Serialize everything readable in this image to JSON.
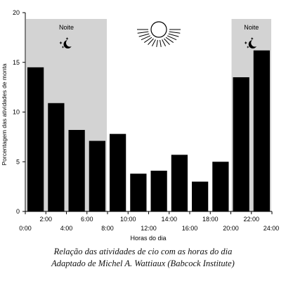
{
  "chart_data": {
    "type": "bar",
    "title": "",
    "ylabel": "Porcentagem das atividades de monta",
    "xlabel": "Horas do dia",
    "ylim": [
      0,
      20
    ],
    "xlim": [
      0,
      24
    ],
    "yticks": [
      0,
      5,
      10,
      15,
      20
    ],
    "xticks_bottom": [
      "0:00",
      "4:00",
      "8:00",
      "12:00",
      "16:00",
      "20:00",
      "24:00"
    ],
    "xticks_top": [
      "2:00",
      "6:00",
      "10:00",
      "14:00",
      "18:00",
      "22:00"
    ],
    "bin_width_hours": 2,
    "x": [
      0,
      2,
      4,
      6,
      8,
      10,
      12,
      14,
      16,
      18,
      20,
      22
    ],
    "values": [
      14.5,
      10.9,
      8.2,
      7.1,
      7.8,
      3.8,
      4.1,
      5.7,
      3.0,
      5.0,
      13.5,
      16.2
    ],
    "bar_color": "#000000",
    "night_shading_color": "#d3d3d3",
    "night_periods": [
      {
        "label": "Noite",
        "from": 0,
        "to": 8
      },
      {
        "label": "Noite",
        "from": 20,
        "to": 24
      }
    ],
    "icons": [
      "moon-stars-icon",
      "sun-icon"
    ]
  },
  "caption": {
    "line1": "Relação das atividades de cio com as horas do dia",
    "line2": "Adaptado de Michel A. Wattiaux (Babcock Institute)"
  }
}
